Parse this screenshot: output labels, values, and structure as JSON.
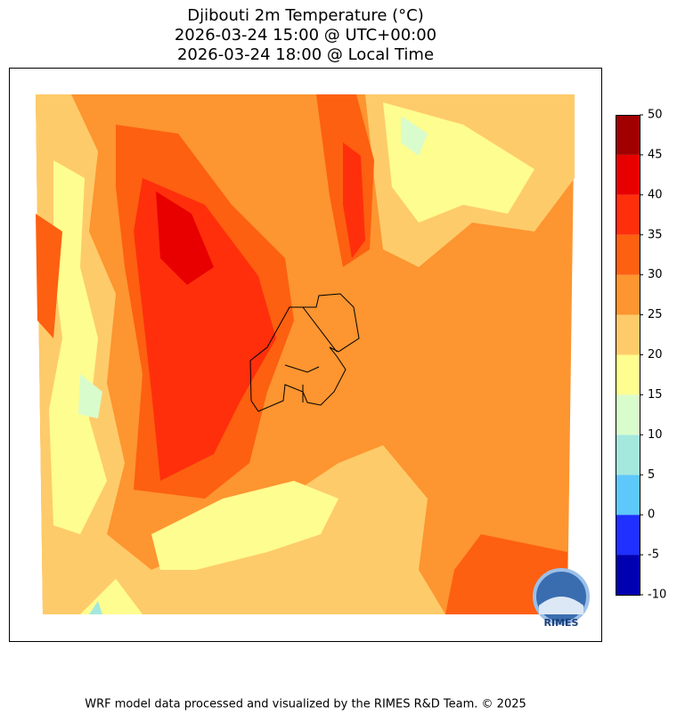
{
  "title": [
    "Djibouti 2m Temperature (°C)",
    "2026-03-24 15:00 @ UTC+00:00",
    "2026-03-24 18:00 @ Local Time"
  ],
  "colorbar": {
    "clim": [
      -10,
      50
    ],
    "ticks": [
      -10,
      -5,
      0,
      5,
      10,
      15,
      20,
      25,
      30,
      35,
      40,
      45,
      50
    ],
    "colors": [
      "#0000b0",
      "#1f30ff",
      "#5ec8fa",
      "#a4e8dd",
      "#d9fccc",
      "#fefd90",
      "#fecb6a",
      "#fd9530",
      "#fd6010",
      "#ff2f0c",
      "#e80000",
      "#a00000"
    ]
  },
  "logo": "RIMES",
  "footer": "WRF model data processed and visualized by the RIMES R&D Team. © 2025"
}
